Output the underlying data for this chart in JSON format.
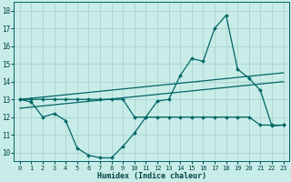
{
  "xlabel": "Humidex (Indice chaleur)",
  "xlim": [
    -0.5,
    23.5
  ],
  "ylim": [
    9.5,
    18.5
  ],
  "yticks": [
    10,
    11,
    12,
    13,
    14,
    15,
    16,
    17,
    18
  ],
  "xticks": [
    0,
    1,
    2,
    3,
    4,
    5,
    6,
    7,
    8,
    9,
    10,
    11,
    12,
    13,
    14,
    15,
    16,
    17,
    18,
    19,
    20,
    21,
    22,
    23
  ],
  "bg_color": "#c8ece8",
  "grid_color": "#a8d4d0",
  "line_color": "#006666",
  "series1_x": [
    0,
    1,
    2,
    3,
    4,
    5,
    6,
    7,
    8,
    9,
    10,
    11,
    12,
    13,
    14,
    15,
    16,
    17,
    18,
    19,
    20,
    21,
    22,
    23
  ],
  "series1_y": [
    13.0,
    12.85,
    12.0,
    12.2,
    11.8,
    10.25,
    9.85,
    9.7,
    9.7,
    10.35,
    11.1,
    12.0,
    12.9,
    13.0,
    14.35,
    15.3,
    15.15,
    17.0,
    17.75,
    14.7,
    14.2,
    13.5,
    11.5,
    11.55
  ],
  "series2_x": [
    0,
    1,
    2,
    3,
    4,
    5,
    6,
    7,
    8,
    9,
    10,
    11,
    12,
    13,
    14,
    15,
    16,
    17,
    18,
    19,
    20,
    21,
    22,
    23
  ],
  "series2_y": [
    13.0,
    13.0,
    13.0,
    13.0,
    13.0,
    13.0,
    13.0,
    13.0,
    13.0,
    13.0,
    12.0,
    12.0,
    12.0,
    12.0,
    12.0,
    12.0,
    12.0,
    12.0,
    12.0,
    12.0,
    12.0,
    11.55,
    11.55,
    11.55
  ],
  "series3_x": [
    0,
    23
  ],
  "series3_y": [
    13.0,
    14.5
  ],
  "series4_x": [
    0,
    23
  ],
  "series4_y": [
    12.5,
    14.0
  ]
}
